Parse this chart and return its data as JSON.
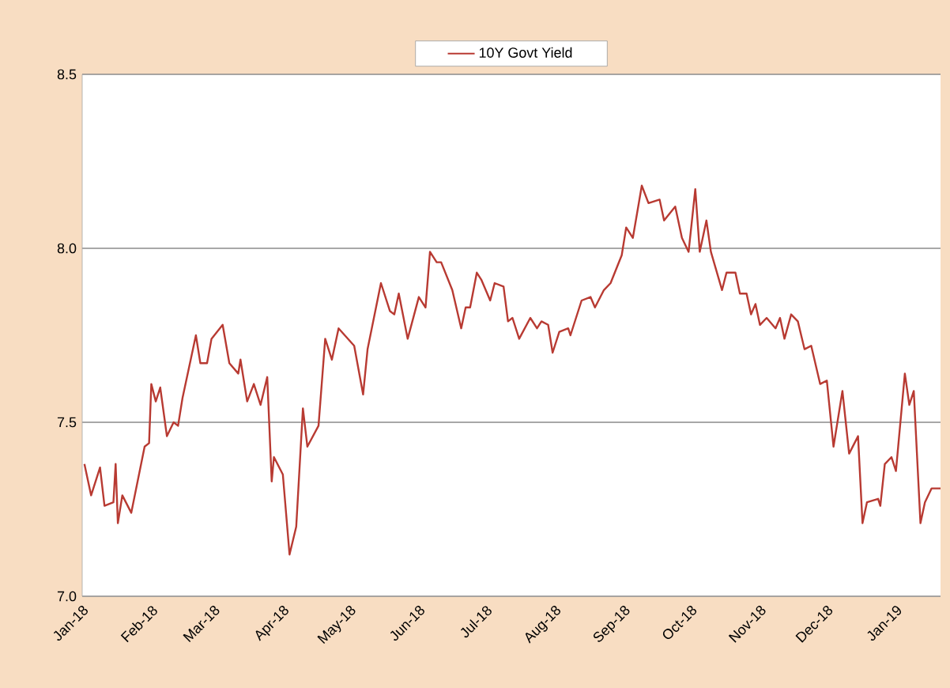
{
  "chart_data": {
    "type": "line",
    "legend": "top",
    "grid": "y",
    "xlim": [
      "2018-01-01",
      "2019-01-21"
    ],
    "ylim": [
      7.0,
      8.5
    ],
    "yticks": [
      {
        "value": 7.0,
        "label": "7.0"
      },
      7.5,
      {
        "value": 8.0,
        "label": "8.0"
      },
      8.5
    ],
    "xticks": [
      {
        "value": "2018-01-01",
        "label": "Jan-18"
      },
      {
        "value": "2018-02-01",
        "label": "Feb-18"
      },
      {
        "value": "2018-03-01",
        "label": "Mar-18"
      },
      {
        "value": "2018-04-01",
        "label": "Apr-18"
      },
      {
        "value": "2018-05-01",
        "label": "May-18"
      },
      {
        "value": "2018-06-01",
        "label": "Jun-18"
      },
      {
        "value": "2018-07-01",
        "label": "Jul-18"
      },
      {
        "value": "2018-08-01",
        "label": "Aug-18"
      },
      {
        "value": "2018-09-01",
        "label": "Sep-18"
      },
      {
        "value": "2018-10-01",
        "label": "Oct-18"
      },
      {
        "value": "2018-11-01",
        "label": "Nov-18"
      },
      {
        "value": "2018-12-01",
        "label": "Dec-18"
      },
      {
        "value": "2019-01-01",
        "label": "Jan-19"
      }
    ],
    "series": [
      {
        "name": "10Y Govt Yield",
        "color": "#b83a32",
        "x": [
          "2018-01-02",
          "2018-01-05",
          "2018-01-09",
          "2018-01-11",
          "2018-01-15",
          "2018-01-16",
          "2018-01-17",
          "2018-01-19",
          "2018-01-23",
          "2018-01-29",
          "2018-01-31",
          "2018-02-01",
          "2018-02-03",
          "2018-02-05",
          "2018-02-08",
          "2018-02-11",
          "2018-02-13",
          "2018-02-15",
          "2018-02-21",
          "2018-02-23",
          "2018-02-26",
          "2018-02-28",
          "2018-03-05",
          "2018-03-08",
          "2018-03-12",
          "2018-03-13",
          "2018-03-16",
          "2018-03-19",
          "2018-03-22",
          "2018-03-25",
          "2018-03-27",
          "2018-03-28",
          "2018-04-01",
          "2018-04-04",
          "2018-04-07",
          "2018-04-10",
          "2018-04-12",
          "2018-04-17",
          "2018-04-20",
          "2018-04-23",
          "2018-04-26",
          "2018-05-03",
          "2018-05-07",
          "2018-05-09",
          "2018-05-15",
          "2018-05-19",
          "2018-05-21",
          "2018-05-23",
          "2018-05-27",
          "2018-06-01",
          "2018-06-04",
          "2018-06-06",
          "2018-06-09",
          "2018-06-11",
          "2018-06-16",
          "2018-06-20",
          "2018-06-22",
          "2018-06-24",
          "2018-06-27",
          "2018-06-29",
          "2018-07-03",
          "2018-07-05",
          "2018-07-09",
          "2018-07-11",
          "2018-07-13",
          "2018-07-16",
          "2018-07-21",
          "2018-07-24",
          "2018-07-26",
          "2018-07-29",
          "2018-07-31",
          "2018-08-03",
          "2018-08-07",
          "2018-08-08",
          "2018-08-13",
          "2018-08-17",
          "2018-08-19",
          "2018-08-23",
          "2018-08-26",
          "2018-08-31",
          "2018-09-02",
          "2018-09-05",
          "2018-09-09",
          "2018-09-12",
          "2018-09-17",
          "2018-09-19",
          "2018-09-24",
          "2018-09-27",
          "2018-09-30",
          "2018-10-03",
          "2018-10-05",
          "2018-10-08",
          "2018-10-10",
          "2018-10-15",
          "2018-10-17",
          "2018-10-21",
          "2018-10-23",
          "2018-10-26",
          "2018-10-28",
          "2018-10-30",
          "2018-11-01",
          "2018-11-04",
          "2018-11-08",
          "2018-11-10",
          "2018-11-12",
          "2018-11-15",
          "2018-11-18",
          "2018-11-21",
          "2018-11-24",
          "2018-11-28",
          "2018-12-01",
          "2018-12-04",
          "2018-12-08",
          "2018-12-11",
          "2018-12-15",
          "2018-12-17",
          "2018-12-19",
          "2018-12-24",
          "2018-12-25",
          "2018-12-27",
          "2018-12-30",
          "2019-01-01",
          "2019-01-02",
          "2019-01-05",
          "2019-01-07",
          "2019-01-09",
          "2019-01-12",
          "2019-01-14",
          "2019-01-17",
          "2019-01-21"
        ],
        "values": [
          7.38,
          7.29,
          7.37,
          7.26,
          7.27,
          7.38,
          7.21,
          7.29,
          7.24,
          7.43,
          7.44,
          7.61,
          7.56,
          7.6,
          7.46,
          7.5,
          7.49,
          7.57,
          7.75,
          7.67,
          7.67,
          7.74,
          7.78,
          7.67,
          7.64,
          7.68,
          7.56,
          7.61,
          7.55,
          7.63,
          7.33,
          7.4,
          7.35,
          7.12,
          7.2,
          7.54,
          7.43,
          7.49,
          7.74,
          7.68,
          7.77,
          7.72,
          7.58,
          7.71,
          7.9,
          7.82,
          7.81,
          7.87,
          7.74,
          7.86,
          7.83,
          7.99,
          7.96,
          7.96,
          7.88,
          7.77,
          7.83,
          7.83,
          7.93,
          7.91,
          7.85,
          7.9,
          7.89,
          7.79,
          7.8,
          7.74,
          7.8,
          7.77,
          7.79,
          7.78,
          7.7,
          7.76,
          7.77,
          7.75,
          7.85,
          7.86,
          7.83,
          7.88,
          7.9,
          7.98,
          8.06,
          8.03,
          8.18,
          8.13,
          8.14,
          8.08,
          8.12,
          8.03,
          7.99,
          8.17,
          7.99,
          8.08,
          7.99,
          7.88,
          7.93,
          7.93,
          7.87,
          7.87,
          7.81,
          7.84,
          7.78,
          7.8,
          7.77,
          7.8,
          7.74,
          7.81,
          7.79,
          7.71,
          7.72,
          7.61,
          7.62,
          7.43,
          7.59,
          7.41,
          7.46,
          7.21,
          7.27,
          7.28,
          7.26,
          7.38,
          7.4,
          7.36,
          7.43,
          7.64,
          7.55,
          7.59,
          7.21,
          7.27,
          7.31,
          7.31
        ]
      }
    ]
  }
}
